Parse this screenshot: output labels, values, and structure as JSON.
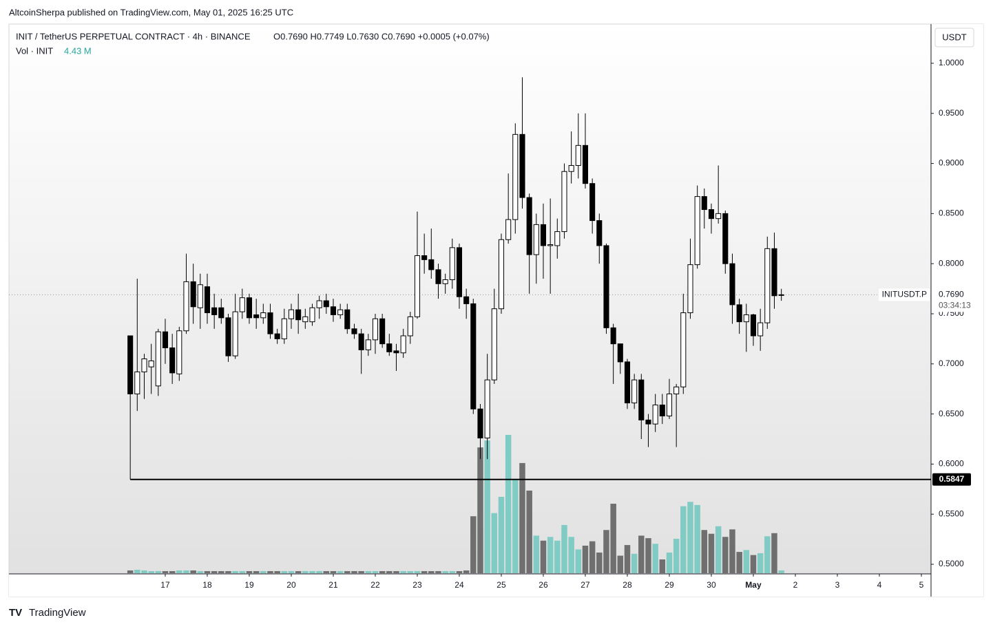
{
  "header": {
    "published": "AltcoinSherpa published on TradingView.com, May 01, 2025 16:25 UTC",
    "brand": "TradingView"
  },
  "chart_data": {
    "type": "candlestick",
    "title": "INIT / TetherUS PERPETUAL CONTRACT · 4h · BINANCE",
    "ohlc_text": "O0.7690  H0.7749  L0.7630  C0.7690  +0.0005 (+0.07%)",
    "volume_title": "Vol · INIT",
    "volume_text": "4.43 M",
    "currency": "USDT",
    "symbol": "INITUSDT.P",
    "countdown": "03:34:13",
    "up_color": "#ffffff",
    "down_color": "#000000",
    "volume_up_color": "#80cbc4",
    "volume_down_color": "#6f6f6f",
    "x": [
      16.167,
      16.333,
      16.5,
      16.667,
      16.833,
      17,
      17.167,
      17.333,
      17.5,
      17.667,
      17.833,
      18,
      18.167,
      18.333,
      18.5,
      18.667,
      18.833,
      19,
      19.167,
      19.333,
      19.5,
      19.667,
      19.833,
      20,
      20.167,
      20.333,
      20.5,
      20.667,
      20.833,
      21,
      21.167,
      21.333,
      21.5,
      21.667,
      21.833,
      22,
      22.167,
      22.333,
      22.5,
      22.667,
      22.833,
      23,
      23.167,
      23.333,
      23.5,
      23.667,
      23.833,
      24,
      24.167,
      24.333,
      24.5,
      24.667,
      24.833,
      25,
      25.167,
      25.333,
      25.5,
      25.667,
      25.833,
      26,
      26.167,
      26.333,
      26.5,
      26.667,
      26.833,
      27,
      27.167,
      27.333,
      27.5,
      27.667,
      27.833,
      28,
      28.167,
      28.333,
      28.5,
      28.667,
      28.833,
      29,
      29.167,
      29.333,
      29.5,
      29.667,
      29.833,
      30,
      30.167,
      30.333,
      30.5,
      30.667,
      30.833,
      31,
      31.167,
      31.333,
      31.5,
      31.667
    ],
    "open": [
      0.728,
      0.67,
      0.692,
      0.697,
      0.678,
      0.732,
      0.716,
      0.69,
      0.733,
      0.782,
      0.756,
      0.777,
      0.756,
      0.756,
      0.746,
      0.708,
      0.752,
      0.766,
      0.749,
      0.746,
      0.751,
      0.73,
      0.725,
      0.745,
      0.754,
      0.742,
      0.742,
      0.756,
      0.763,
      0.757,
      0.749,
      0.754,
      0.735,
      0.73,
      0.714,
      0.724,
      0.745,
      0.72,
      0.713,
      0.711,
      0.728,
      0.747,
      0.808,
      0.804,
      0.794,
      0.78,
      0.784,
      0.816,
      0.767,
      0.76,
      0.655,
      0.626,
      0.684,
      0.755,
      0.824,
      0.844,
      0.929,
      0.866,
      0.809,
      0.839,
      0.818,
      0.818,
      0.832,
      0.892,
      0.898,
      0.918,
      0.88,
      0.843,
      0.818,
      0.736,
      0.72,
      0.702,
      0.661,
      0.684,
      0.644,
      0.64,
      0.659,
      0.648,
      0.67,
      0.677,
      0.751,
      0.799,
      0.867,
      0.854,
      0.845,
      0.85,
      0.8,
      0.759,
      0.742,
      0.749,
      0.728,
      0.741,
      0.815,
      0.769
    ],
    "high": [
      0.728,
      0.785,
      0.71,
      0.72,
      0.735,
      0.745,
      0.73,
      0.737,
      0.81,
      0.8,
      0.79,
      0.79,
      0.77,
      0.765,
      0.75,
      0.77,
      0.775,
      0.77,
      0.765,
      0.76,
      0.76,
      0.735,
      0.755,
      0.76,
      0.77,
      0.755,
      0.76,
      0.768,
      0.77,
      0.765,
      0.76,
      0.76,
      0.74,
      0.735,
      0.73,
      0.75,
      0.75,
      0.73,
      0.72,
      0.735,
      0.752,
      0.852,
      0.83,
      0.835,
      0.8,
      0.79,
      0.825,
      0.82,
      0.775,
      0.765,
      0.66,
      0.71,
      0.775,
      0.83,
      0.89,
      0.94,
      0.986,
      0.87,
      0.85,
      0.86,
      0.865,
      0.845,
      0.9,
      0.932,
      0.95,
      0.95,
      0.885,
      0.85,
      0.82,
      0.74,
      0.72,
      0.705,
      0.69,
      0.69,
      0.65,
      0.67,
      0.67,
      0.685,
      0.68,
      0.77,
      0.825,
      0.878,
      0.875,
      0.86,
      0.898,
      0.853,
      0.81,
      0.765,
      0.76,
      0.75,
      0.755,
      0.827,
      0.831,
      0.7749
    ],
    "low": [
      0.5847,
      0.653,
      0.665,
      0.67,
      0.668,
      0.7,
      0.68,
      0.683,
      0.73,
      0.74,
      0.735,
      0.74,
      0.735,
      0.74,
      0.702,
      0.705,
      0.745,
      0.74,
      0.735,
      0.74,
      0.725,
      0.72,
      0.72,
      0.735,
      0.73,
      0.735,
      0.738,
      0.745,
      0.75,
      0.742,
      0.745,
      0.73,
      0.725,
      0.69,
      0.708,
      0.71,
      0.716,
      0.708,
      0.693,
      0.706,
      0.72,
      0.745,
      0.79,
      0.785,
      0.765,
      0.77,
      0.775,
      0.755,
      0.745,
      0.65,
      0.605,
      0.605,
      0.68,
      0.75,
      0.82,
      0.83,
      0.855,
      0.77,
      0.78,
      0.785,
      0.77,
      0.805,
      0.825,
      0.88,
      0.885,
      0.875,
      0.83,
      0.8,
      0.73,
      0.68,
      0.69,
      0.655,
      0.655,
      0.625,
      0.617,
      0.632,
      0.64,
      0.645,
      0.617,
      0.67,
      0.745,
      0.795,
      0.835,
      0.83,
      0.84,
      0.79,
      0.74,
      0.73,
      0.712,
      0.718,
      0.713,
      0.735,
      0.755,
      0.763
    ],
    "close": [
      0.67,
      0.692,
      0.705,
      0.703,
      0.732,
      0.716,
      0.691,
      0.733,
      0.782,
      0.757,
      0.779,
      0.751,
      0.749,
      0.746,
      0.708,
      0.752,
      0.766,
      0.746,
      0.746,
      0.751,
      0.73,
      0.725,
      0.745,
      0.754,
      0.744,
      0.747,
      0.756,
      0.763,
      0.757,
      0.749,
      0.754,
      0.735,
      0.73,
      0.714,
      0.724,
      0.745,
      0.72,
      0.712,
      0.711,
      0.728,
      0.747,
      0.808,
      0.804,
      0.794,
      0.78,
      0.784,
      0.816,
      0.767,
      0.76,
      0.655,
      0.626,
      0.684,
      0.755,
      0.824,
      0.844,
      0.929,
      0.866,
      0.809,
      0.839,
      0.818,
      0.819,
      0.832,
      0.892,
      0.898,
      0.918,
      0.88,
      0.843,
      0.818,
      0.736,
      0.72,
      0.702,
      0.661,
      0.684,
      0.644,
      0.64,
      0.659,
      0.648,
      0.67,
      0.677,
      0.751,
      0.799,
      0.867,
      0.854,
      0.845,
      0.85,
      0.8,
      0.759,
      0.742,
      0.749,
      0.728,
      0.741,
      0.815,
      0.768,
      0.769
    ],
    "volume": [
      4.4,
      5.5,
      4.4,
      3.3,
      3.3,
      3.3,
      3.3,
      4.4,
      4.4,
      4.4,
      3.3,
      3.3,
      3.3,
      3.3,
      3.3,
      3.3,
      3.3,
      3.3,
      3.3,
      3.3,
      3.3,
      3.3,
      3.3,
      3.3,
      3.3,
      3.3,
      3.3,
      3.3,
      3.3,
      3.3,
      3.3,
      3.3,
      3.3,
      3.3,
      3.3,
      3.3,
      3.3,
      3.3,
      3.3,
      3.3,
      3.3,
      3.3,
      3.3,
      3.3,
      3.3,
      3.3,
      3.3,
      3.3,
      4.4,
      91,
      201,
      212,
      96,
      122,
      221,
      150,
      176,
      132,
      60,
      52,
      58,
      52,
      77,
      58,
      38,
      44,
      51,
      33,
      69,
      111,
      28,
      45,
      31,
      60,
      56,
      47,
      22,
      33,
      55,
      107,
      114,
      109,
      69,
      63,
      75,
      58,
      70,
      34,
      37,
      29,
      32,
      59,
      64,
      4.43
    ],
    "ylim": [
      0.4911,
      1.0391
    ],
    "yticks": [
      {
        "value": 0.5,
        "label": "0.5000"
      },
      {
        "value": 0.55,
        "label": "0.5500"
      },
      {
        "value": 0.6,
        "label": "0.6000"
      },
      {
        "value": 0.65,
        "label": "0.6500"
      },
      {
        "value": 0.7,
        "label": "0.7000"
      },
      {
        "value": 0.75,
        "label": "0.7500"
      },
      {
        "value": 0.8,
        "label": "0.8000"
      },
      {
        "value": 0.85,
        "label": "0.8500"
      },
      {
        "value": 0.9,
        "label": "0.9000"
      },
      {
        "value": 0.95,
        "label": "0.9500"
      },
      {
        "value": 1,
        "label": "1.0000"
      }
    ],
    "xlim": [
      13.279,
      35.23
    ],
    "xticks": [
      17,
      18,
      19,
      20,
      21,
      22,
      23,
      24,
      25,
      26,
      27,
      28,
      29,
      30,
      {
        "value": 31,
        "label": "May"
      },
      {
        "value": 32,
        "label": "2"
      },
      {
        "value": 33,
        "label": "3"
      },
      {
        "value": 34,
        "label": "4"
      },
      {
        "value": 35,
        "label": "5"
      }
    ],
    "last_price": {
      "value": 0.769,
      "label": "0.7690"
    },
    "hline": 0.5847
  }
}
